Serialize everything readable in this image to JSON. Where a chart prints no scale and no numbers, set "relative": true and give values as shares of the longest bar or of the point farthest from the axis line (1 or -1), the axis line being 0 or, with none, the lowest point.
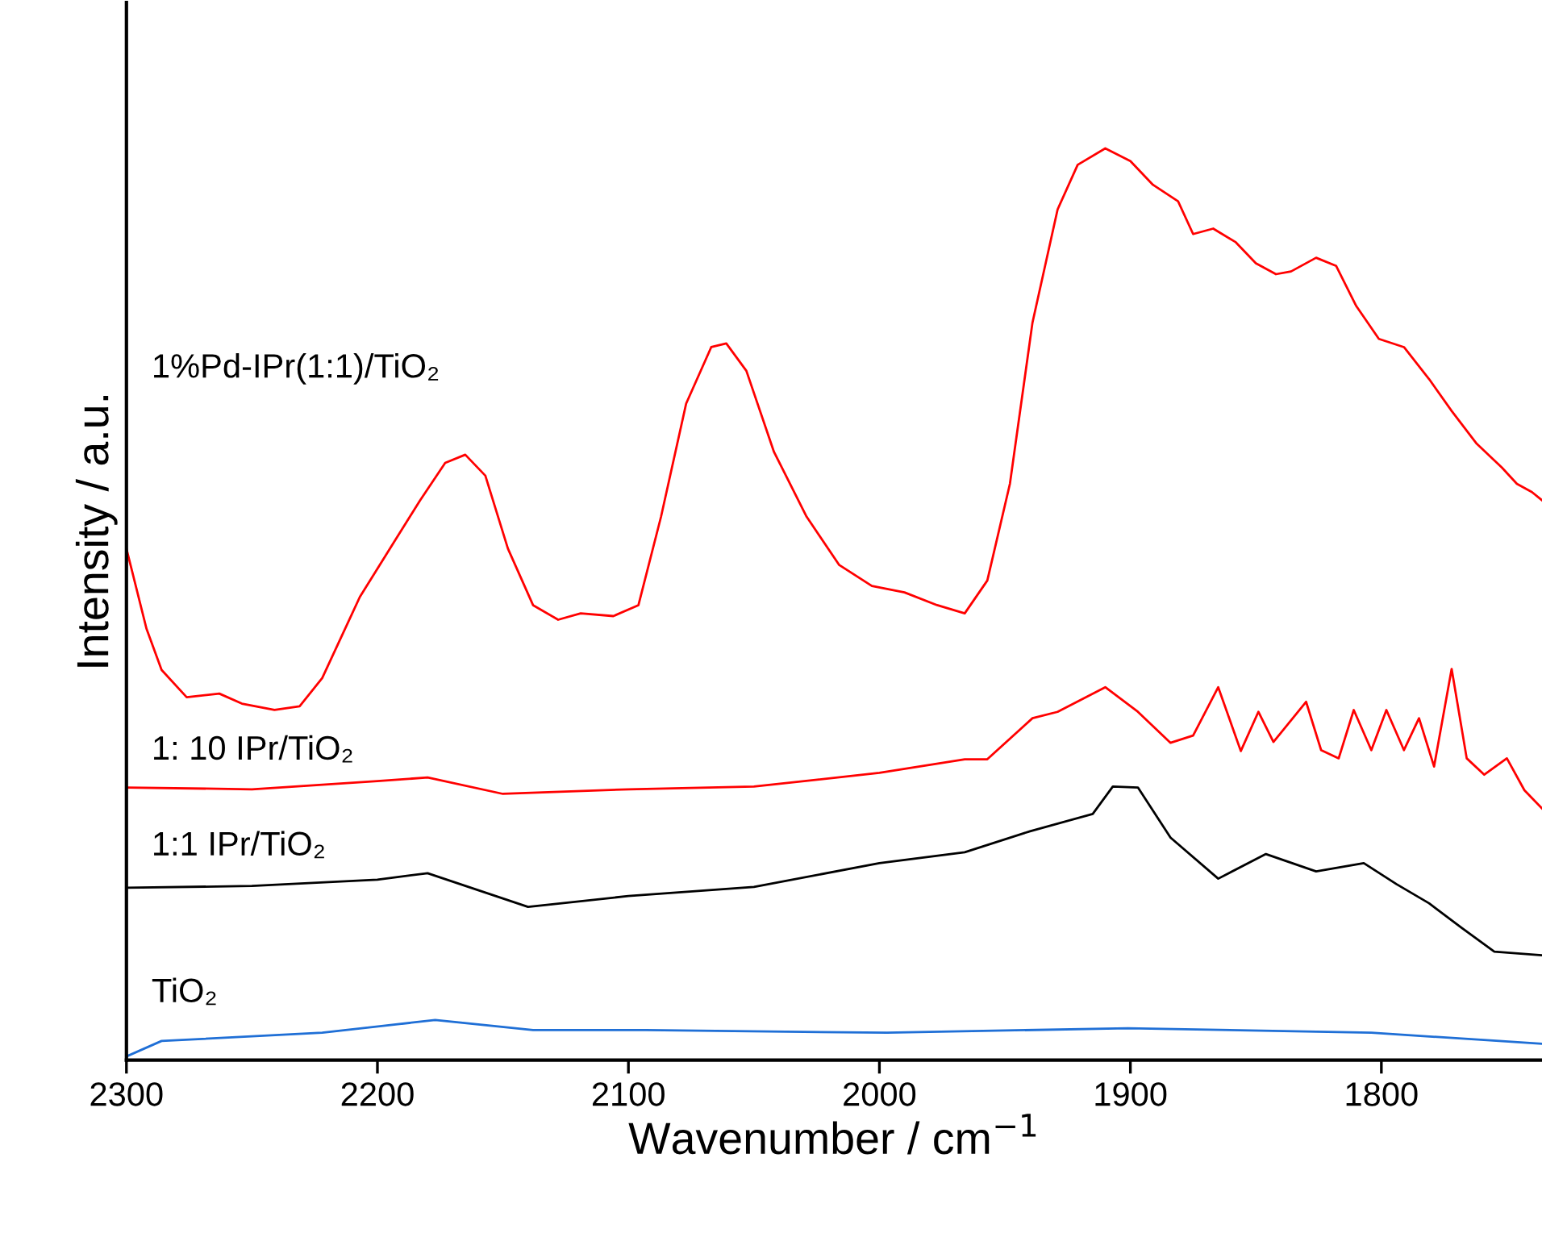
{
  "chart_data": {
    "type": "line",
    "relative": true,
    "xlabel": "Wavenumber / cm$^{−1}$",
    "ylabel": "Intensity / a.u.",
    "xlim": [
      2300,
      1736
    ],
    "xticks": [
      2300,
      2200,
      2100,
      2000,
      1900,
      1800
    ],
    "grid": false,
    "legend": false,
    "marker": "none",
    "line_style": "solid",
    "tick_labels": "x",
    "series": [
      {
        "name": "1%Pd-IPr(1:1)/TiO₂",
        "color": "#ff0000",
        "x": [
          2300,
          2292,
          2286,
          2276,
          2263,
          2254,
          2241,
          2231,
          2222,
          2207,
          2193,
          2183,
          2173,
          2165,
          2157,
          2148,
          2138,
          2128,
          2119,
          2106,
          2096,
          2087,
          2077,
          2067,
          2061,
          2053,
          2042,
          2029,
          2016,
          2003,
          1990,
          1977,
          1966,
          1957,
          1948,
          1939,
          1929,
          1921,
          1910,
          1900,
          1891,
          1881,
          1875,
          1867,
          1858,
          1850,
          1842,
          1836,
          1826,
          1818,
          1810,
          1801,
          1791,
          1781,
          1772,
          1762,
          1752,
          1746,
          1740,
          1736
        ],
        "values": [
          0.561,
          0.473,
          0.428,
          0.398,
          0.402,
          0.391,
          0.384,
          0.388,
          0.419,
          0.508,
          0.57,
          0.614,
          0.655,
          0.664,
          0.641,
          0.561,
          0.499,
          0.483,
          0.49,
          0.487,
          0.499,
          0.596,
          0.72,
          0.782,
          0.786,
          0.756,
          0.667,
          0.596,
          0.543,
          0.52,
          0.513,
          0.499,
          0.49,
          0.526,
          0.632,
          0.809,
          0.933,
          0.982,
          1.0,
          0.986,
          0.96,
          0.942,
          0.906,
          0.912,
          0.897,
          0.874,
          0.862,
          0.865,
          0.88,
          0.871,
          0.827,
          0.791,
          0.782,
          0.747,
          0.712,
          0.676,
          0.65,
          0.632,
          0.623,
          0.614
        ]
      },
      {
        "name": "1: 10 IPr/TiO₂",
        "color": "#ff0000",
        "x": [
          2300,
          2250,
          2200,
          2180,
          2150,
          2100,
          2050,
          2000,
          1966,
          1957,
          1939,
          1929,
          1910,
          1897,
          1884,
          1875,
          1865,
          1856,
          1849,
          1843,
          1830,
          1824,
          1817,
          1811,
          1804,
          1798,
          1791,
          1785,
          1779,
          1772,
          1766,
          1759,
          1750,
          1743,
          1736
        ],
        "values": [
          0.299,
          0.297,
          0.306,
          0.31,
          0.292,
          0.297,
          0.3,
          0.315,
          0.33,
          0.33,
          0.375,
          0.382,
          0.409,
          0.382,
          0.348,
          0.356,
          0.409,
          0.339,
          0.382,
          0.349,
          0.393,
          0.34,
          0.331,
          0.384,
          0.34,
          0.384,
          0.34,
          0.375,
          0.322,
          0.429,
          0.331,
          0.313,
          0.331,
          0.296,
          0.276
        ]
      },
      {
        "name": "1:1 IPr/TiO₂",
        "color": "#000000",
        "x": [
          2300,
          2250,
          2200,
          2180,
          2140,
          2100,
          2050,
          2000,
          1966,
          1940,
          1915,
          1907,
          1897,
          1884,
          1865,
          1846,
          1826,
          1807,
          1794,
          1781,
          1768,
          1755,
          1736
        ],
        "values": [
          0.189,
          0.191,
          0.198,
          0.205,
          0.168,
          0.18,
          0.19,
          0.216,
          0.228,
          0.251,
          0.27,
          0.3,
          0.299,
          0.244,
          0.199,
          0.226,
          0.207,
          0.216,
          0.193,
          0.172,
          0.145,
          0.119,
          0.115
        ]
      },
      {
        "name": "TiO₂",
        "color": "#1f6fd6",
        "x": [
          2300,
          2286,
          2222,
          2177,
          2138,
          2093,
          1997,
          1901,
          1804,
          1753,
          1736
        ],
        "values": [
          0.004,
          0.021,
          0.03,
          0.044,
          0.033,
          0.033,
          0.03,
          0.035,
          0.03,
          0.021,
          0.018
        ]
      }
    ]
  }
}
